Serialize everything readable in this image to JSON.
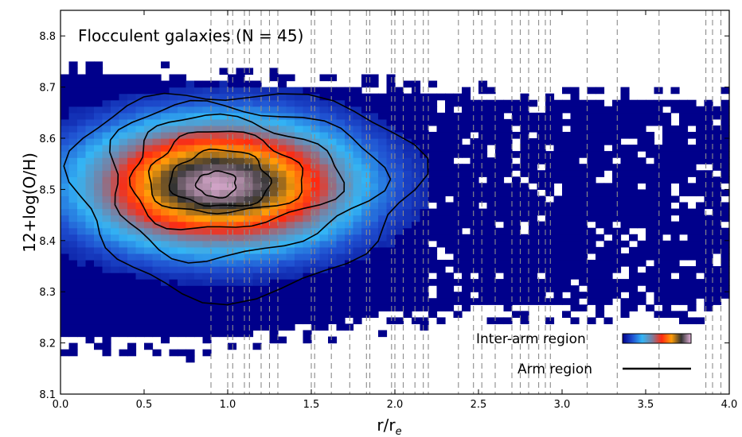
{
  "chart_data": {
    "type": "heatmap",
    "title": "Flocculent galaxies (N = 45)",
    "xlabel_main": "r/r",
    "xlabel_sub": "e",
    "ylabel": "12+log(O/H)",
    "xlim": [
      0.0,
      4.0
    ],
    "ylim": [
      8.1,
      8.85
    ],
    "x_ticks": [
      "0.0",
      "0.5",
      "1.0",
      "1.5",
      "2.0",
      "2.5",
      "3.0",
      "3.5",
      "4.0"
    ],
    "y_ticks": [
      "8.1",
      "8.2",
      "8.3",
      "8.4",
      "8.5",
      "8.6",
      "8.7",
      "8.8"
    ],
    "colormap": [
      "#00008b",
      "#1f4fd0",
      "#33b5f5",
      "#7a7fa0",
      "#ff2a10",
      "#ff9d08",
      "#333333",
      "#e8b4dc"
    ],
    "density_peak": {
      "x": 0.95,
      "y": 8.51
    },
    "galaxy_radii_vlines": [
      0.9,
      1.0,
      1.03,
      1.1,
      1.13,
      1.2,
      1.25,
      1.3,
      1.5,
      1.52,
      1.62,
      1.73,
      1.83,
      1.85,
      1.98,
      2.0,
      2.05,
      2.12,
      2.17,
      2.2,
      2.38,
      2.47,
      2.52,
      2.6,
      2.7,
      2.75,
      2.8,
      2.86,
      2.9,
      2.93,
      3.15,
      3.33,
      3.58,
      3.86,
      3.9,
      3.95
    ],
    "contour_levels": [
      {
        "cx": 0.95,
        "cy": 8.5,
        "rx": 1.02,
        "ry": 0.2
      },
      {
        "cx": 0.95,
        "cy": 8.52,
        "rx": 0.8,
        "ry": 0.15
      },
      {
        "cx": 0.93,
        "cy": 8.53,
        "rx": 0.62,
        "ry": 0.11
      },
      {
        "cx": 0.92,
        "cy": 8.53,
        "rx": 0.46,
        "ry": 0.08
      },
      {
        "cx": 0.92,
        "cy": 8.52,
        "rx": 0.3,
        "ry": 0.055
      },
      {
        "cx": 0.92,
        "cy": 8.51,
        "rx": 0.12,
        "ry": 0.025
      }
    ],
    "legend": {
      "placement": "bottom-right",
      "inter_arm_label": "Inter-arm region",
      "arm_label": "Arm region"
    }
  }
}
